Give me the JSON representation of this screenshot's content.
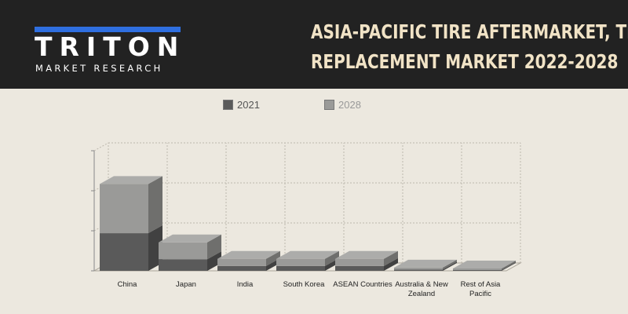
{
  "header": {
    "brand": "TRITON",
    "brand_sub": "MARKET RESEARCH",
    "title_line1": "ASIA-PACIFIC TIRE AFTERMARKET, TIRE",
    "title_line2": "REPLACEMENT MARKET 2022-2028"
  },
  "colors": {
    "header_bg": "#222222",
    "page_bg": "#ece8df",
    "title": "#f1e3c6",
    "logo_accent": "#2f6fe0",
    "series_2021": "#5a5a5a",
    "series_2028": "#9a9a98"
  },
  "chart_data": {
    "type": "bar",
    "stacked": true,
    "three_d": true,
    "title": "",
    "xlabel": "",
    "ylabel": "",
    "ylim": [
      0,
      3
    ],
    "grid": true,
    "legend_position": "top",
    "categories": [
      "China",
      "Japan",
      "India",
      "South Korea",
      "ASEAN Countries",
      "Australia & New Zealand",
      "Rest of Asia Pacific"
    ],
    "series": [
      {
        "name": "2021",
        "color": "#5a5a5a",
        "values": [
          0.94,
          0.29,
          0.12,
          0.12,
          0.12,
          0.03,
          0.02
        ]
      },
      {
        "name": "2028",
        "color": "#9a9a98",
        "values": [
          1.23,
          0.42,
          0.18,
          0.18,
          0.18,
          0.05,
          0.04
        ]
      }
    ]
  }
}
